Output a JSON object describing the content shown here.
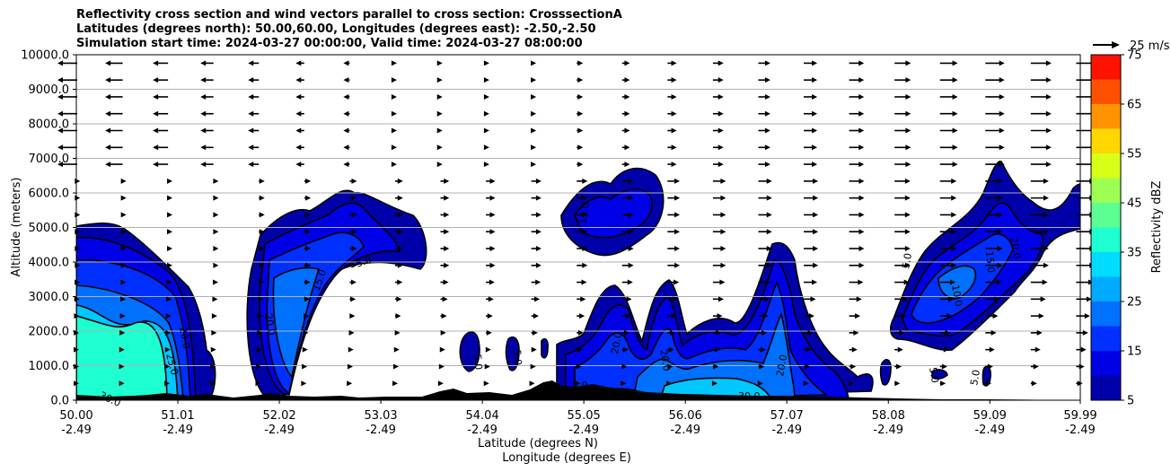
{
  "header": {
    "title_lines": [
      "Reflectivity cross section and wind vectors parallel to cross section: CrosssectionA",
      "Latitudes (degrees north): 50.00,60.00, Longitudes (degrees east): -2.50,-2.50",
      "Simulation start time: 2024-03-27 00:00:00, Valid time: 2024-03-27 08:00:00"
    ]
  },
  "chart_data": {
    "type": "contour",
    "title": "Reflectivity cross section and wind vectors parallel to cross section: CrosssectionA",
    "ylabel": "Altitude (meters)",
    "xlabel": "Latitude (degrees N)",
    "xlabel2": "Longitude (degrees E)",
    "xlim": [
      50.0,
      59.99
    ],
    "ylim": [
      0,
      10000
    ],
    "grid": "horizontal",
    "y_ticks": [
      0,
      1000,
      2000,
      3000,
      4000,
      5000,
      6000,
      7000,
      8000,
      9000,
      10000
    ],
    "y_tick_labels": [
      "0.0",
      "1000.0",
      "2000.0",
      "3000.0",
      "4000.0",
      "5000.0",
      "6000.0",
      "7000.0",
      "8000.0",
      "9000.0",
      "10000.0"
    ],
    "x_ticks": [
      50.0,
      51.01,
      52.02,
      53.03,
      54.04,
      55.05,
      56.06,
      57.07,
      58.08,
      59.09,
      59.99
    ],
    "x_tick_labels": [
      {
        "lat": "50.00",
        "lon": "-2.49"
      },
      {
        "lat": "51.01",
        "lon": "-2.49"
      },
      {
        "lat": "52.02",
        "lon": "-2.49"
      },
      {
        "lat": "53.03",
        "lon": "-2.49"
      },
      {
        "lat": "54.04",
        "lon": "-2.49"
      },
      {
        "lat": "55.05",
        "lon": "-2.49"
      },
      {
        "lat": "56.06",
        "lon": "-2.49"
      },
      {
        "lat": "57.07",
        "lon": "-2.49"
      },
      {
        "lat": "58.08",
        "lon": "-2.49"
      },
      {
        "lat": "59.09",
        "lon": "-2.49"
      },
      {
        "lat": "59.99",
        "lon": "-2.49"
      }
    ],
    "colorbar": {
      "label": "Reflectivity dBZ",
      "levels": [
        5,
        10,
        15,
        20,
        25,
        30,
        35,
        40,
        45,
        50,
        55,
        60,
        65,
        70,
        75
      ],
      "tick_labels": [
        "5",
        "15",
        "25",
        "35",
        "45",
        "55",
        "65",
        "75"
      ],
      "colors": [
        "#0000aa",
        "#0000e6",
        "#0030ff",
        "#0070ff",
        "#00aaff",
        "#00dcff",
        "#1effd2",
        "#5cff92",
        "#9cff52",
        "#d8ff18",
        "#ffd800",
        "#ff9400",
        "#ff5000",
        "#ff1200",
        "#a80000"
      ]
    },
    "wind_reference": {
      "label": "25 m/s",
      "speed": 25
    },
    "contour_labels": [
      "5.0",
      "10.0",
      "15.0",
      "20.0",
      "25.0",
      "30.0"
    ]
  }
}
